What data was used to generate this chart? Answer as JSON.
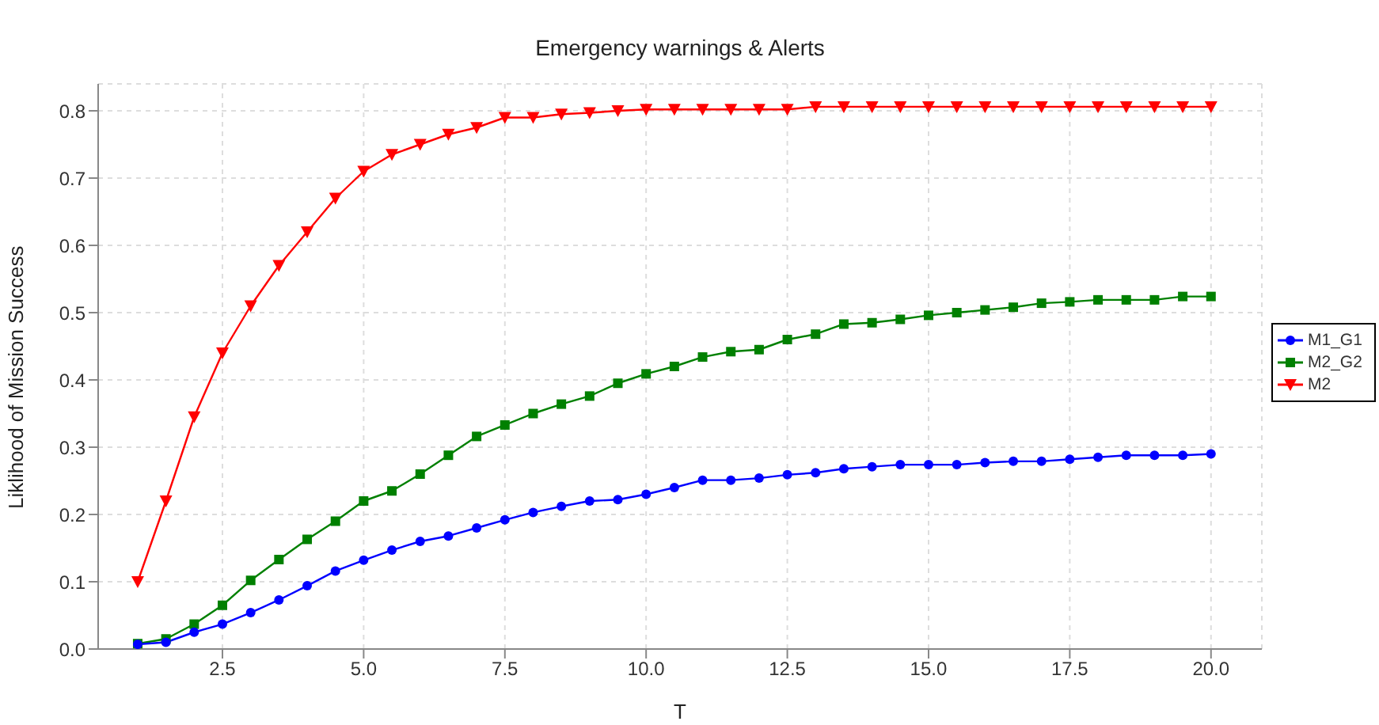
{
  "chart_data": {
    "type": "line",
    "title": "Emergency warnings & Alerts",
    "xlabel": "T",
    "ylabel": "Liklihood of Mission Success",
    "x": [
      1,
      1.5,
      2,
      2.5,
      3,
      3.5,
      4,
      4.5,
      5,
      5.5,
      6,
      6.5,
      7,
      7.5,
      8,
      8.5,
      9,
      9.5,
      10,
      10.5,
      11,
      11.5,
      12,
      12.5,
      13,
      13.5,
      14,
      14.5,
      15,
      15.5,
      16,
      16.5,
      17,
      17.5,
      18,
      18.5,
      19,
      19.5,
      20
    ],
    "series": [
      {
        "name": "M1_G1",
        "color": "#0000ff",
        "marker": "circle",
        "values": [
          0.007,
          0.01,
          0.025,
          0.037,
          0.054,
          0.073,
          0.094,
          0.116,
          0.132,
          0.147,
          0.16,
          0.168,
          0.18,
          0.192,
          0.203,
          0.212,
          0.22,
          0.222,
          0.23,
          0.24,
          0.251,
          0.251,
          0.254,
          0.259,
          0.262,
          0.268,
          0.271,
          0.274,
          0.274,
          0.274,
          0.277,
          0.279,
          0.279,
          0.282,
          0.285,
          0.288,
          0.288,
          0.288,
          0.29
        ]
      },
      {
        "name": "M2_G2",
        "color": "#008000",
        "marker": "square",
        "values": [
          0.008,
          0.015,
          0.037,
          0.065,
          0.102,
          0.133,
          0.163,
          0.19,
          0.22,
          0.235,
          0.26,
          0.288,
          0.316,
          0.333,
          0.35,
          0.364,
          0.376,
          0.395,
          0.409,
          0.42,
          0.434,
          0.442,
          0.445,
          0.46,
          0.468,
          0.483,
          0.485,
          0.49,
          0.496,
          0.5,
          0.504,
          0.508,
          0.514,
          0.516,
          0.519,
          0.519,
          0.519,
          0.524,
          0.524
        ]
      },
      {
        "name": "M2",
        "color": "#ff0000",
        "marker": "triangle",
        "values": [
          0.1,
          0.22,
          0.345,
          0.44,
          0.51,
          0.57,
          0.62,
          0.67,
          0.71,
          0.735,
          0.75,
          0.765,
          0.775,
          0.79,
          0.79,
          0.795,
          0.797,
          0.8,
          0.802,
          0.802,
          0.802,
          0.802,
          0.802,
          0.802,
          0.806,
          0.806,
          0.806,
          0.806,
          0.806,
          0.806,
          0.806,
          0.806,
          0.806,
          0.806,
          0.806,
          0.806,
          0.806,
          0.806,
          0.806
        ]
      }
    ],
    "xlim": [
      0.3,
      20.9
    ],
    "xticks": [
      2.5,
      {
        "value": 5,
        "label": "5.0"
      },
      7.5,
      {
        "value": 10,
        "label": "10.0"
      },
      12.5,
      {
        "value": 15,
        "label": "15.0"
      },
      17.5,
      {
        "value": 20,
        "label": "20.0"
      }
    ],
    "ylim": [
      0,
      0.84
    ],
    "yticks": [
      {
        "value": 0,
        "label": "0.0"
      },
      0.1,
      0.2,
      0.3,
      0.4,
      0.5,
      0.6,
      0.7,
      0.8
    ],
    "grid": true,
    "legend": "right",
    "line_style": "solid"
  }
}
